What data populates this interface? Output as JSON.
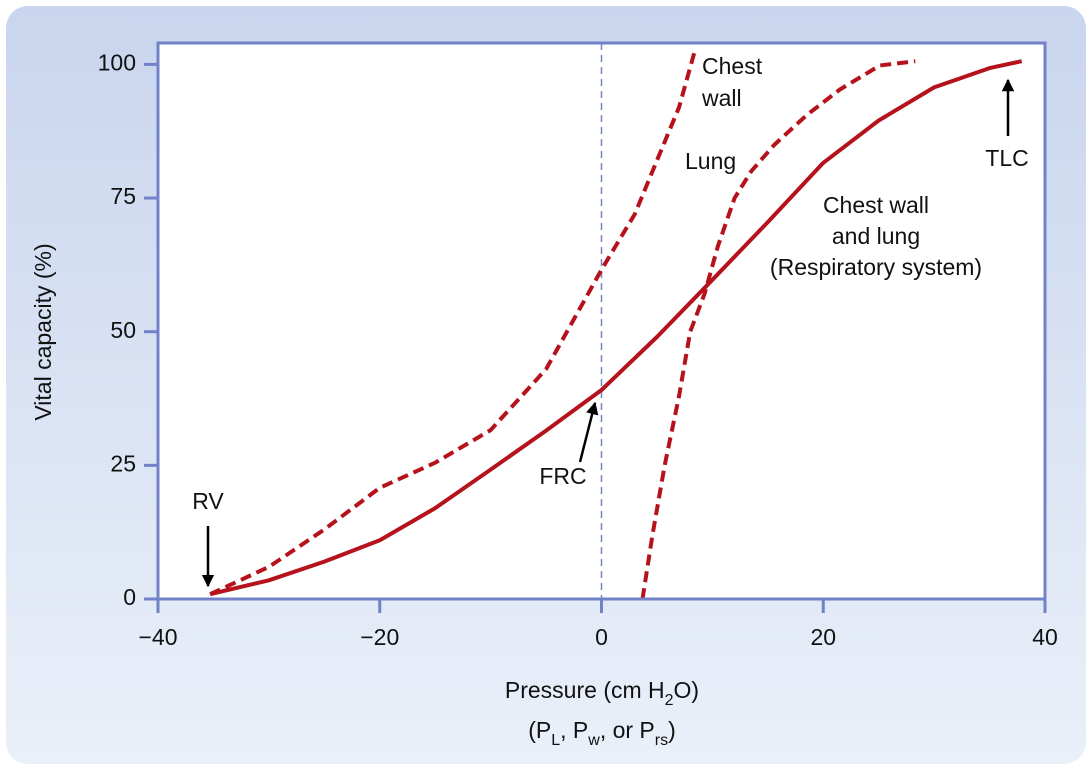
{
  "chart_data": {
    "type": "line",
    "xlabel": [
      "Pressure (cm H",
      "2",
      "O)"
    ],
    "xlabel2": [
      "(P",
      "L",
      ", P",
      "w",
      ", or P",
      "rs",
      ")"
    ],
    "ylabel": "Vital capacity (%)",
    "xlim": [
      -40,
      40
    ],
    "ylim": [
      0,
      104
    ],
    "xticks": [
      {
        "value": -40,
        "label": "−40"
      },
      {
        "value": -20,
        "label": "−20"
      },
      0,
      20,
      40
    ],
    "yticks": [
      0,
      25,
      50,
      75,
      100
    ],
    "vline": 0,
    "series": [
      {
        "name": [
          "Chest",
          "wall"
        ],
        "color": "#b5121b",
        "style": "dashed",
        "x": [
          -35.3,
          -30,
          -25,
          -20,
          -15,
          -10,
          -5,
          0,
          3,
          5,
          7,
          8.4
        ],
        "values": [
          0.9,
          6,
          13,
          20.8,
          25.5,
          31.6,
          43,
          61.6,
          72,
          82,
          92,
          102.4
        ]
      },
      {
        "name": [
          "Lung"
        ],
        "color": "#b5121b",
        "style": "dashed",
        "x": [
          3.7,
          4.6,
          5.7,
          7,
          8,
          9.3,
          10.5,
          12,
          13.5,
          15.6,
          18.5,
          21.5,
          25.1,
          28.3
        ],
        "values": [
          0,
          12,
          25,
          38,
          50,
          57.1,
          66,
          75,
          80,
          85,
          90.5,
          95.3,
          99.8,
          100.6
        ]
      },
      {
        "name": [
          "Chest wall",
          "and lung",
          "(Respiratory system)"
        ],
        "color": "#b5121b",
        "style": "solid",
        "x": [
          -35.3,
          -30,
          -25,
          -20,
          -15,
          -10,
          -5,
          0,
          5,
          10,
          15,
          20,
          25,
          30,
          35,
          37.9
        ],
        "values": [
          0.9,
          3.5,
          7,
          11,
          17,
          24.2,
          31.5,
          39.1,
          49,
          59.7,
          70.5,
          81.6,
          89.5,
          95.7,
          99.3,
          100.6
        ]
      }
    ],
    "annotations": [
      "RV",
      "FRC",
      "TLC"
    ]
  }
}
